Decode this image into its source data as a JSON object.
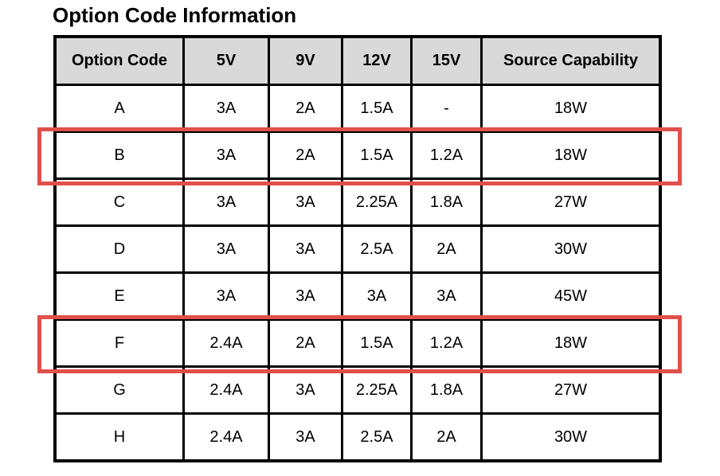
{
  "title": "Option Code Information",
  "colors": {
    "highlight_red": "#e0504a",
    "header_bg": "#d9d9d9",
    "border_black": "#000000"
  },
  "table": {
    "headers": [
      "Option Code",
      "5V",
      "9V",
      "12V",
      "15V",
      "Source Capability"
    ],
    "rows": [
      {
        "cells": [
          "A",
          "3A",
          "2A",
          "1.5A",
          "-",
          "18W"
        ],
        "highlighted": false
      },
      {
        "cells": [
          "B",
          "3A",
          "2A",
          "1.5A",
          "1.2A",
          "18W"
        ],
        "highlighted": true
      },
      {
        "cells": [
          "C",
          "3A",
          "3A",
          "2.25A",
          "1.8A",
          "27W"
        ],
        "highlighted": false
      },
      {
        "cells": [
          "D",
          "3A",
          "3A",
          "2.5A",
          "2A",
          "30W"
        ],
        "highlighted": false
      },
      {
        "cells": [
          "E",
          "3A",
          "3A",
          "3A",
          "3A",
          "45W"
        ],
        "highlighted": false
      },
      {
        "cells": [
          "F",
          "2.4A",
          "2A",
          "1.5A",
          "1.2A",
          "18W"
        ],
        "highlighted": true
      },
      {
        "cells": [
          "G",
          "2.4A",
          "3A",
          "2.25A",
          "1.8A",
          "27W"
        ],
        "highlighted": false
      },
      {
        "cells": [
          "H",
          "2.4A",
          "3A",
          "2.5A",
          "2A",
          "30W"
        ],
        "highlighted": false
      }
    ]
  }
}
